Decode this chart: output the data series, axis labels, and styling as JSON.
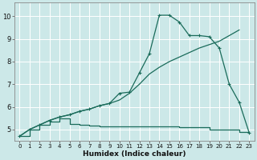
{
  "xlabel": "Humidex (Indice chaleur)",
  "bg_color": "#cce8e8",
  "line_color": "#1a6b5a",
  "grid_color": "#ffffff",
  "xlim": [
    -0.5,
    23.5
  ],
  "ylim": [
    4.5,
    10.6
  ],
  "xticks": [
    0,
    1,
    2,
    3,
    4,
    5,
    6,
    7,
    8,
    9,
    10,
    11,
    12,
    13,
    14,
    15,
    16,
    17,
    18,
    19,
    20,
    21,
    22,
    23
  ],
  "yticks": [
    5,
    6,
    7,
    8,
    9,
    10
  ],
  "series1_x": [
    0,
    1,
    2,
    3,
    4,
    5,
    6,
    7,
    8,
    9,
    10,
    11,
    12,
    13,
    14,
    15,
    16,
    17,
    18,
    19,
    20,
    21,
    22,
    23
  ],
  "series1_y": [
    4.7,
    5.0,
    5.2,
    5.4,
    5.55,
    5.65,
    5.8,
    5.9,
    6.05,
    6.15,
    6.6,
    6.65,
    7.5,
    8.35,
    10.05,
    10.05,
    9.75,
    9.15,
    9.15,
    9.1,
    8.6,
    7.0,
    6.2,
    4.85
  ],
  "series2_x": [
    0,
    1,
    2,
    3,
    4,
    5,
    6,
    7,
    8,
    9,
    10,
    11,
    12,
    13,
    14,
    15,
    16,
    17,
    18,
    19,
    20,
    21,
    22
  ],
  "series2_y": [
    4.7,
    5.0,
    5.2,
    5.4,
    5.55,
    5.65,
    5.8,
    5.9,
    6.05,
    6.15,
    6.3,
    6.6,
    7.0,
    7.45,
    7.75,
    8.0,
    8.2,
    8.4,
    8.6,
    8.75,
    8.9,
    9.15,
    9.4
  ],
  "series3_x_steps": [
    0,
    1,
    2,
    3,
    4,
    5,
    6,
    7,
    8,
    9,
    10,
    11,
    12,
    13,
    14,
    15,
    16,
    17,
    18,
    19,
    20,
    21,
    22,
    23
  ],
  "series3_y_steps": [
    4.7,
    5.0,
    5.2,
    5.35,
    5.5,
    5.25,
    5.2,
    5.18,
    5.15,
    5.15,
    5.15,
    5.15,
    5.15,
    5.15,
    5.15,
    5.15,
    5.1,
    5.1,
    5.1,
    5.0,
    5.0,
    5.0,
    4.9,
    4.85
  ]
}
